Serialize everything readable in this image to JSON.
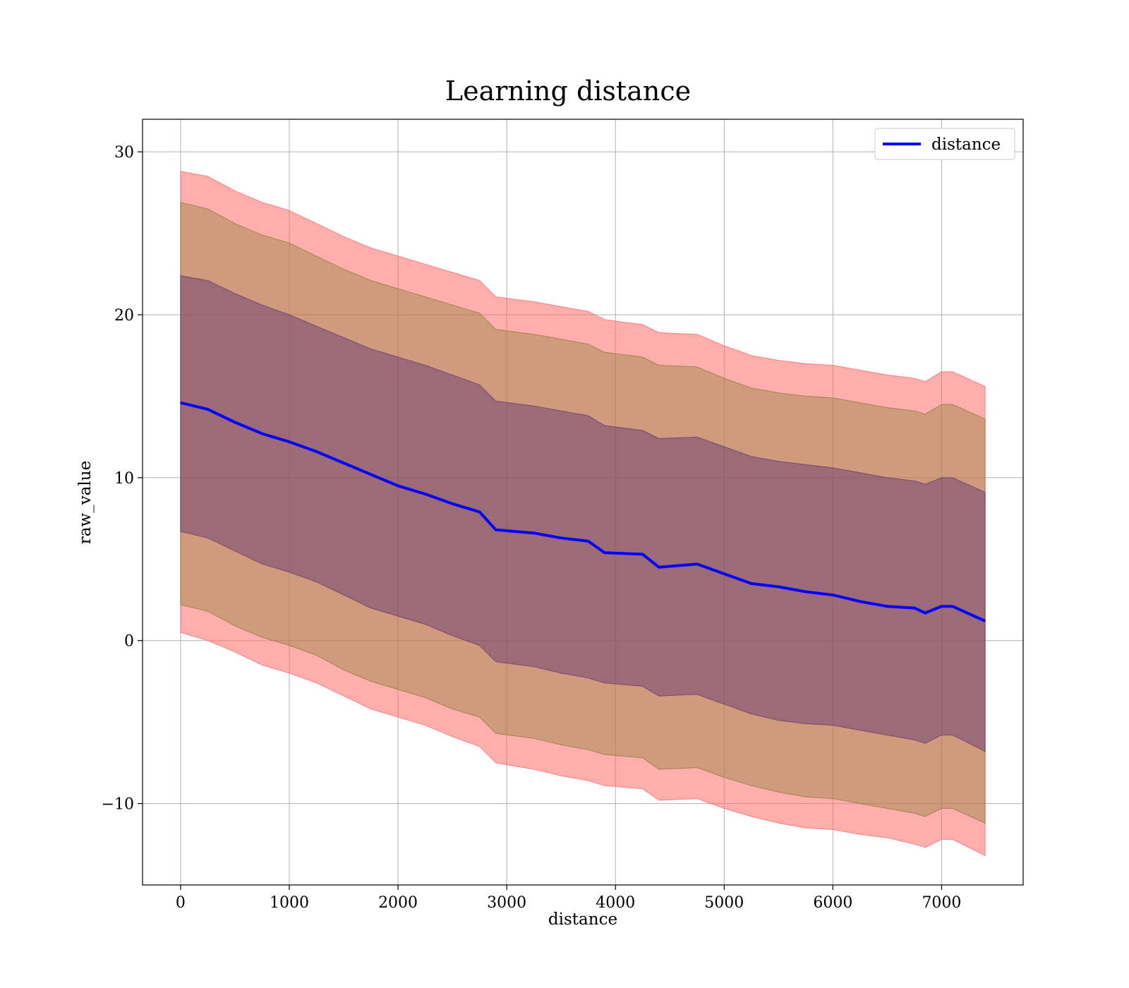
{
  "chart_data": {
    "type": "line",
    "title": "Learning distance",
    "xlabel": "distance",
    "ylabel": "raw_value",
    "xlim": [
      -350,
      7750
    ],
    "ylim": [
      -15,
      32
    ],
    "x_ticks": [
      0,
      1000,
      2000,
      3000,
      4000,
      5000,
      6000,
      7000
    ],
    "y_ticks": [
      -10,
      0,
      10,
      20,
      30
    ],
    "x_tick_labels": [
      "0",
      "1000",
      "2000",
      "3000",
      "4000",
      "5000",
      "6000",
      "7000"
    ],
    "y_tick_labels": [
      "−10",
      "0",
      "10",
      "20",
      "30"
    ],
    "grid": true,
    "legend": {
      "placement": "top-right",
      "entries": [
        "distance"
      ]
    },
    "colors": {
      "line": "#0000ff",
      "outer_band": "#ff6b6b",
      "middle_band": "#8f7e3a",
      "inner_band": "#6a3b72",
      "grid": "#b0b0b0"
    },
    "x": [
      0,
      250,
      500,
      750,
      1000,
      1250,
      1500,
      1750,
      2000,
      2250,
      2500,
      2750,
      2900,
      3250,
      3500,
      3750,
      3900,
      4250,
      4400,
      4750,
      5000,
      5250,
      5500,
      5750,
      6000,
      6250,
      6500,
      6750,
      6850,
      7000,
      7100,
      7400
    ],
    "series": [
      {
        "name": "distance",
        "values": [
          14.6,
          14.2,
          13.4,
          12.7,
          12.2,
          11.6,
          10.9,
          10.2,
          9.5,
          9.0,
          8.4,
          7.9,
          6.8,
          6.6,
          6.3,
          6.1,
          5.4,
          5.3,
          4.5,
          4.7,
          4.1,
          3.5,
          3.3,
          3.0,
          2.8,
          2.4,
          2.1,
          2.0,
          1.7,
          2.1,
          2.1,
          1.2
        ]
      }
    ],
    "bands": [
      {
        "level": "outer",
        "upper": [
          28.8,
          28.5,
          27.6,
          26.9,
          26.4,
          25.6,
          24.8,
          24.1,
          23.6,
          23.1,
          22.6,
          22.1,
          21.1,
          20.8,
          20.5,
          20.2,
          19.7,
          19.4,
          18.9,
          18.8,
          18.1,
          17.5,
          17.2,
          17.0,
          16.9,
          16.6,
          16.3,
          16.1,
          15.9,
          16.5,
          16.5,
          15.6
        ],
        "lower": [
          0.5,
          0.0,
          -0.7,
          -1.5,
          -2.0,
          -2.6,
          -3.4,
          -4.2,
          -4.7,
          -5.2,
          -5.9,
          -6.5,
          -7.5,
          -7.9,
          -8.3,
          -8.6,
          -8.9,
          -9.1,
          -9.8,
          -9.7,
          -10.3,
          -10.8,
          -11.2,
          -11.5,
          -11.6,
          -11.9,
          -12.1,
          -12.5,
          -12.7,
          -12.2,
          -12.2,
          -13.2
        ]
      },
      {
        "level": "middle",
        "upper": [
          26.9,
          26.5,
          25.6,
          24.9,
          24.4,
          23.6,
          22.8,
          22.1,
          21.6,
          21.1,
          20.6,
          20.1,
          19.1,
          18.8,
          18.5,
          18.2,
          17.7,
          17.4,
          16.9,
          16.8,
          16.1,
          15.5,
          15.2,
          15.0,
          14.9,
          14.6,
          14.3,
          14.1,
          13.9,
          14.5,
          14.5,
          13.6
        ],
        "lower": [
          2.2,
          1.8,
          0.9,
          0.2,
          -0.3,
          -0.9,
          -1.8,
          -2.5,
          -3.0,
          -3.5,
          -4.2,
          -4.7,
          -5.7,
          -6.0,
          -6.4,
          -6.7,
          -7.0,
          -7.2,
          -7.9,
          -7.8,
          -8.4,
          -8.9,
          -9.3,
          -9.6,
          -9.7,
          -10.0,
          -10.3,
          -10.6,
          -10.8,
          -10.3,
          -10.3,
          -11.2
        ]
      },
      {
        "level": "inner",
        "upper": [
          22.4,
          22.1,
          21.3,
          20.6,
          20.0,
          19.3,
          18.6,
          17.9,
          17.4,
          16.9,
          16.3,
          15.7,
          14.7,
          14.4,
          14.1,
          13.8,
          13.2,
          12.9,
          12.4,
          12.5,
          11.9,
          11.3,
          11.0,
          10.8,
          10.6,
          10.3,
          10.0,
          9.8,
          9.6,
          10.0,
          10.0,
          9.1
        ],
        "lower": [
          6.7,
          6.3,
          5.5,
          4.7,
          4.2,
          3.6,
          2.8,
          2.0,
          1.5,
          1.0,
          0.3,
          -0.3,
          -1.3,
          -1.6,
          -2.0,
          -2.3,
          -2.6,
          -2.8,
          -3.4,
          -3.3,
          -3.9,
          -4.5,
          -4.9,
          -5.1,
          -5.2,
          -5.5,
          -5.8,
          -6.1,
          -6.3,
          -5.8,
          -5.8,
          -6.8
        ]
      }
    ]
  }
}
